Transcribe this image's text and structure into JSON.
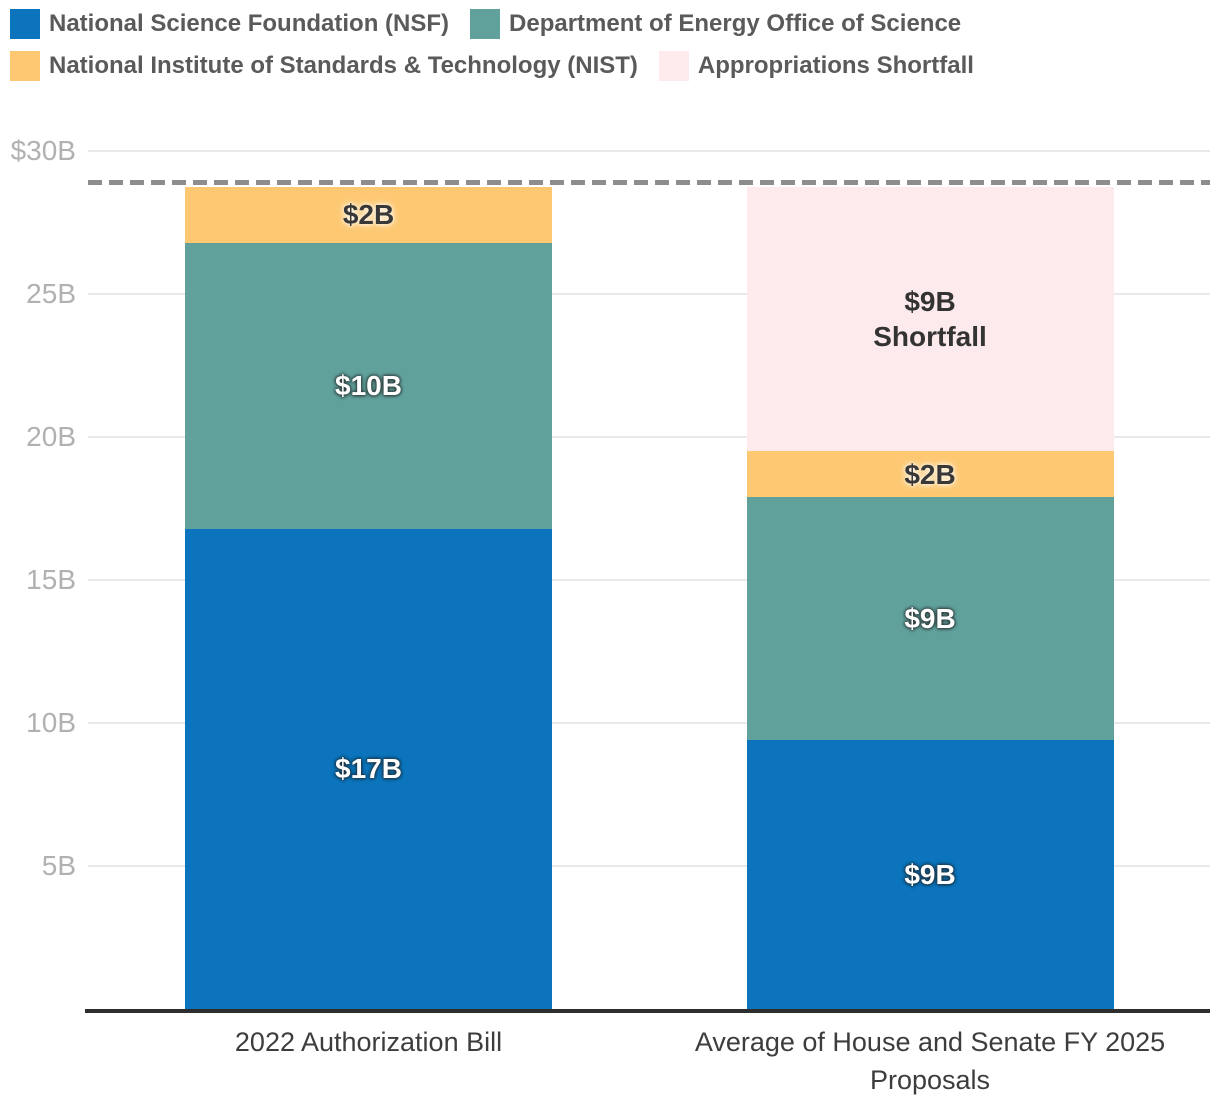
{
  "legend": {
    "items": [
      {
        "id": "nsf",
        "label": "National Science Foundation (NSF)",
        "color": "#0b74bc"
      },
      {
        "id": "doe-science",
        "label": "Department of Energy Office of Science",
        "color": "#61a19c"
      },
      {
        "id": "nist",
        "label": "National Institute of Standards & Technology (NIST)",
        "color": "#fdc871"
      },
      {
        "id": "shortfall",
        "label": "Appropriations Shortfall",
        "color": "#fdeaed"
      }
    ]
  },
  "chart_data": {
    "type": "bar",
    "stacked": true,
    "unit": "US$ billions",
    "categories": [
      "2022 Authorization Bill",
      "Average of House and Senate FY 2025 Proposals"
    ],
    "series": [
      {
        "id": "nsf",
        "name": "National Science Foundation (NSF)",
        "color": "#0b74bc",
        "values": [
          16.8,
          9.4
        ],
        "labels": [
          "$17B",
          "$9B"
        ]
      },
      {
        "id": "doe-science",
        "name": "Department of Energy Office of Science",
        "color": "#61a19c",
        "values": [
          10.0,
          8.5
        ],
        "labels": [
          "$10B",
          "$9B"
        ]
      },
      {
        "id": "nist",
        "name": "National Institute of Standards & Technology (NIST)",
        "color": "#fdc871",
        "values": [
          1.95,
          1.6
        ],
        "labels": [
          "$2B",
          "$2B"
        ]
      },
      {
        "id": "shortfall",
        "name": "Appropriations Shortfall",
        "color": "#fdeaed",
        "values": [
          0,
          9.25
        ],
        "labels": [
          "",
          "$9B\nShortfall"
        ]
      }
    ],
    "y_ticks": [
      {
        "value": 30,
        "label": "$30B"
      },
      {
        "value": 25,
        "label": "25B"
      },
      {
        "value": 20,
        "label": "20B"
      },
      {
        "value": 15,
        "label": "15B"
      },
      {
        "value": 10,
        "label": "10B"
      },
      {
        "value": 5,
        "label": "5B"
      }
    ],
    "ylim": [
      0,
      31
    ],
    "grid": true,
    "legend_position": "top",
    "reference_line": {
      "value": 28.9,
      "style": "dashed",
      "color": "#8d8d8d"
    }
  }
}
